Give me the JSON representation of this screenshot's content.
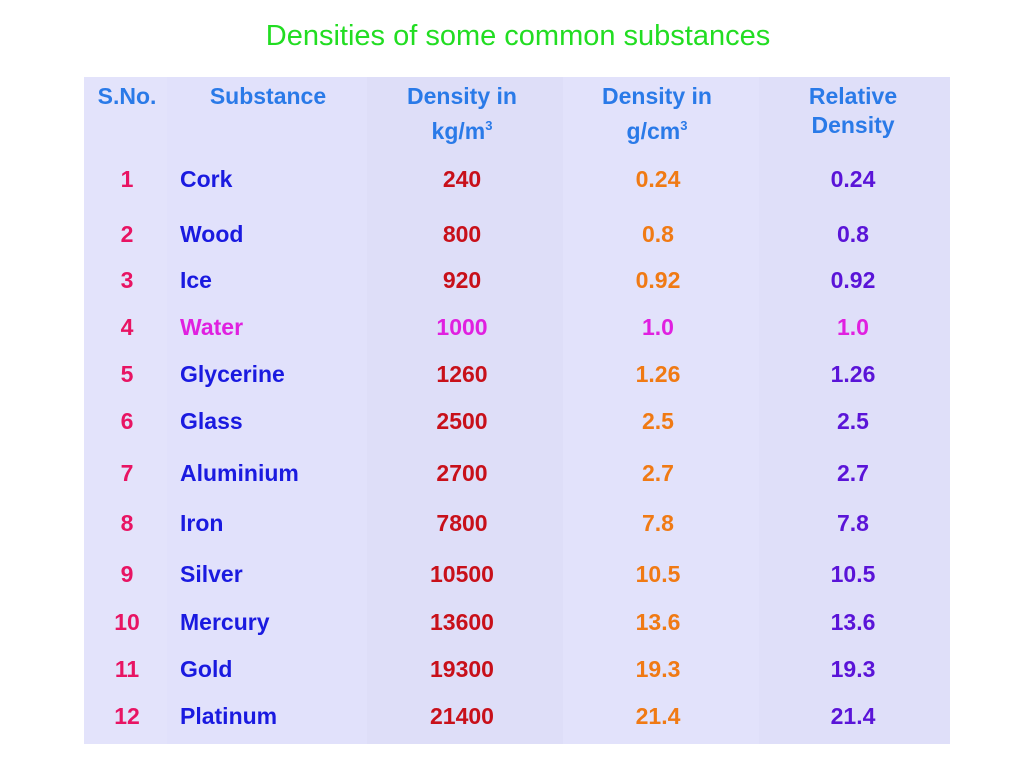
{
  "title": "Densities of some common substances",
  "headers": {
    "sno": "S.No.",
    "substance": "Substance",
    "kgm_line1": "Density in",
    "kgm_line2": "kg/m",
    "kgm_sup": "3",
    "gcm_line1": "Density in",
    "gcm_line2": "g/cm",
    "gcm_sup": "3",
    "rel_line1": "Relative",
    "rel_line2": "Density"
  },
  "rows": [
    {
      "sno": "1",
      "name": "Cork",
      "kgm": "240",
      "gcm": "0.24",
      "rel": "0.24"
    },
    {
      "sno": "2",
      "name": "Wood",
      "kgm": "800",
      "gcm": "0.8",
      "rel": "0.8"
    },
    {
      "sno": "3",
      "name": "Ice",
      "kgm": "920",
      "gcm": "0.92",
      "rel": "0.92"
    },
    {
      "sno": "4",
      "name": "Water",
      "kgm": "1000",
      "gcm": "1.0",
      "rel": "1.0"
    },
    {
      "sno": "5",
      "name": "Glycerine",
      "kgm": "1260",
      "gcm": "1.26",
      "rel": "1.26"
    },
    {
      "sno": "6",
      "name": "Glass",
      "kgm": "2500",
      "gcm": "2.5",
      "rel": "2.5"
    },
    {
      "sno": "7",
      "name": "Aluminium",
      "kgm": "2700",
      "gcm": "2.7",
      "rel": "2.7"
    },
    {
      "sno": "8",
      "name": "Iron",
      "kgm": "7800",
      "gcm": "7.8",
      "rel": "7.8"
    },
    {
      "sno": "9",
      "name": "Silver",
      "kgm": "10500",
      "gcm": "10.5",
      "rel": "10.5"
    },
    {
      "sno": "10",
      "name": "Mercury",
      "kgm": "13600",
      "gcm": "13.6",
      "rel": "13.6"
    },
    {
      "sno": "11",
      "name": "Gold",
      "kgm": "19300",
      "gcm": "19.3",
      "rel": "19.3"
    },
    {
      "sno": "12",
      "name": "Platinum",
      "kgm": "21400",
      "gcm": "21.4",
      "rel": "21.4"
    }
  ],
  "colors": {
    "title": "#22dd22",
    "header": "#2a7ae8",
    "sno": "#e81463",
    "substance": "#1a1ae0",
    "water_highlight": "#e020e0",
    "density_kgm": "#c8101a",
    "density_gcm": "#f07a14",
    "relative_density": "#5a14d8",
    "table_bg": "#e0e0fa"
  }
}
